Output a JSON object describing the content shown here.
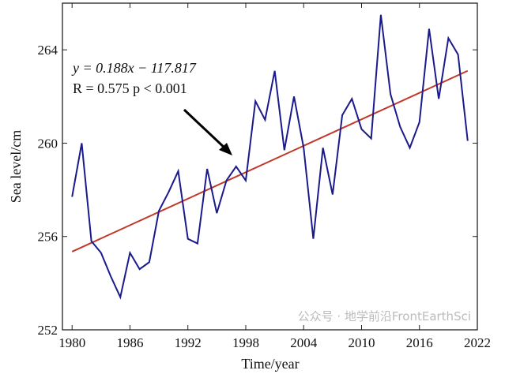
{
  "chart_data": {
    "type": "line",
    "title": "",
    "xlabel": "Time/year",
    "ylabel": "Sea level/cm",
    "xlim": [
      1979,
      2022
    ],
    "ylim": [
      252,
      266
    ],
    "xticks": [
      1980,
      1986,
      1992,
      1998,
      2004,
      2010,
      2016,
      2022
    ],
    "yticks": [
      252,
      256,
      260,
      264
    ],
    "grid": false,
    "x": [
      1980,
      1981,
      1982,
      1983,
      1984,
      1985,
      1986,
      1987,
      1988,
      1989,
      1990,
      1991,
      1992,
      1993,
      1994,
      1995,
      1996,
      1997,
      1998,
      1999,
      2000,
      2001,
      2002,
      2003,
      2004,
      2005,
      2006,
      2007,
      2008,
      2009,
      2010,
      2011,
      2012,
      2013,
      2014,
      2015,
      2016,
      2017,
      2018,
      2019,
      2020,
      2021
    ],
    "series": [
      {
        "values": [
          257.7,
          260.0,
          255.8,
          255.3,
          254.3,
          253.4,
          255.3,
          254.6,
          254.9,
          257.1,
          257.9,
          258.8,
          255.9,
          255.7,
          258.9,
          257.0,
          258.4,
          259.0,
          258.4,
          261.8,
          261.0,
          263.1,
          259.7,
          262.0,
          259.8,
          255.9,
          259.8,
          257.8,
          261.2,
          261.9,
          260.6,
          260.2,
          265.5,
          262.1,
          260.7,
          259.8,
          260.9,
          264.9,
          261.9,
          264.5,
          263.8,
          260.1
        ],
        "color": "#1a1a8c"
      }
    ],
    "trend": {
      "x": [
        1980,
        2021
      ],
      "y": [
        255.35,
        263.1
      ],
      "color": "#c0392b"
    },
    "annotations": {
      "equation": "y = 0.188x − 117.817",
      "stats": "R = 0.575 p < 0.001"
    }
  },
  "watermark": "公众号 · 地学前沿FrontEarthSci"
}
